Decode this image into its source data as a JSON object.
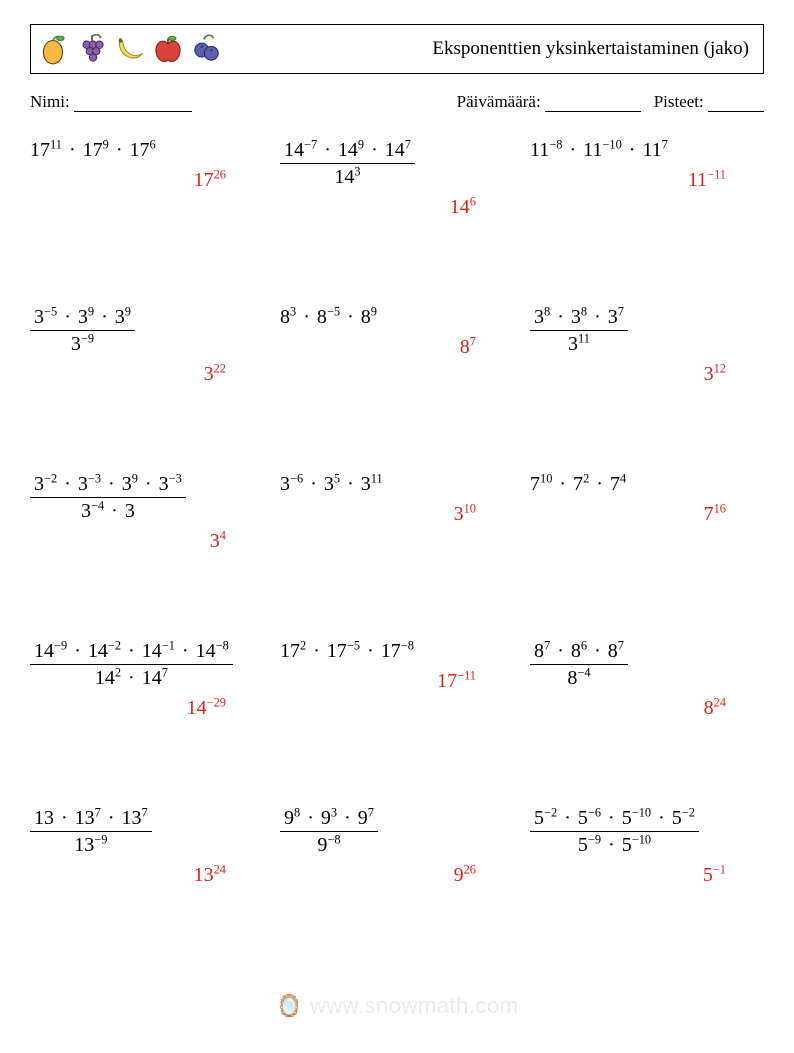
{
  "header": {
    "title": "Eksponenttien yksinkertaistaminen (jako)",
    "title_fontsize": 19
  },
  "meta": {
    "name_label": "Nimi:",
    "date_label": "Päivämäärä:",
    "score_label": "Pisteet:",
    "fontsize": 17,
    "blank_widths": {
      "name": 118,
      "date": 96,
      "score": 56
    }
  },
  "icons": [
    "mango-icon",
    "grapes-icon",
    "banana-icon",
    "apple-icon",
    "blueberries-icon"
  ],
  "style": {
    "answer_color": "#d8231b",
    "text_color": "#000000",
    "background_color": "#ffffff",
    "expr_fontsize": 20,
    "columns": 3,
    "row_gap": 90
  },
  "watermark": "🪞 www.snowmath.com",
  "problems": [
    {
      "type": "product",
      "terms": [
        {
          "b": "17",
          "e": "11"
        },
        {
          "b": "17",
          "e": "9"
        },
        {
          "b": "17",
          "e": "6"
        }
      ],
      "answer": {
        "b": "17",
        "e": "26"
      }
    },
    {
      "type": "fraction",
      "num": [
        {
          "b": "14",
          "e": "−7"
        },
        {
          "b": "14",
          "e": "9"
        },
        {
          "b": "14",
          "e": "7"
        }
      ],
      "den": [
        {
          "b": "14",
          "e": "3"
        }
      ],
      "answer": {
        "b": "14",
        "e": "6"
      }
    },
    {
      "type": "product",
      "terms": [
        {
          "b": "11",
          "e": "−8"
        },
        {
          "b": "11",
          "e": "−10"
        },
        {
          "b": "11",
          "e": "7"
        }
      ],
      "answer": {
        "b": "11",
        "e": "−11"
      }
    },
    {
      "type": "fraction",
      "num": [
        {
          "b": "3",
          "e": "−5"
        },
        {
          "b": "3",
          "e": "9"
        },
        {
          "b": "3",
          "e": "9"
        }
      ],
      "den": [
        {
          "b": "3",
          "e": "−9"
        }
      ],
      "answer": {
        "b": "3",
        "e": "22"
      }
    },
    {
      "type": "product",
      "terms": [
        {
          "b": "8",
          "e": "3"
        },
        {
          "b": "8",
          "e": "−5"
        },
        {
          "b": "8",
          "e": "9"
        }
      ],
      "answer": {
        "b": "8",
        "e": "7"
      }
    },
    {
      "type": "fraction",
      "num": [
        {
          "b": "3",
          "e": "8"
        },
        {
          "b": "3",
          "e": "8"
        },
        {
          "b": "3",
          "e": "7"
        }
      ],
      "den": [
        {
          "b": "3",
          "e": "11"
        }
      ],
      "answer": {
        "b": "3",
        "e": "12"
      }
    },
    {
      "type": "fraction",
      "num": [
        {
          "b": "3",
          "e": "−2"
        },
        {
          "b": "3",
          "e": "−3"
        },
        {
          "b": "3",
          "e": "9"
        },
        {
          "b": "3",
          "e": "−3"
        }
      ],
      "den": [
        {
          "b": "3",
          "e": "−4"
        },
        {
          "b": "3",
          "e": ""
        }
      ],
      "answer": {
        "b": "3",
        "e": "4"
      }
    },
    {
      "type": "product",
      "terms": [
        {
          "b": "3",
          "e": "−6"
        },
        {
          "b": "3",
          "e": "5"
        },
        {
          "b": "3",
          "e": "11"
        }
      ],
      "answer": {
        "b": "3",
        "e": "10"
      }
    },
    {
      "type": "product",
      "terms": [
        {
          "b": "7",
          "e": "10"
        },
        {
          "b": "7",
          "e": "2"
        },
        {
          "b": "7",
          "e": "4"
        }
      ],
      "answer": {
        "b": "7",
        "e": "16"
      }
    },
    {
      "type": "fraction",
      "num": [
        {
          "b": "14",
          "e": "−9"
        },
        {
          "b": "14",
          "e": "−2"
        },
        {
          "b": "14",
          "e": "−1"
        },
        {
          "b": "14",
          "e": "−8"
        }
      ],
      "den": [
        {
          "b": "14",
          "e": "2"
        },
        {
          "b": "14",
          "e": "7"
        }
      ],
      "answer": {
        "b": "14",
        "e": "−29"
      }
    },
    {
      "type": "product",
      "terms": [
        {
          "b": "17",
          "e": "2"
        },
        {
          "b": "17",
          "e": "−5"
        },
        {
          "b": "17",
          "e": "−8"
        }
      ],
      "answer": {
        "b": "17",
        "e": "−11"
      }
    },
    {
      "type": "fraction",
      "num": [
        {
          "b": "8",
          "e": "7"
        },
        {
          "b": "8",
          "e": "6"
        },
        {
          "b": "8",
          "e": "7"
        }
      ],
      "den": [
        {
          "b": "8",
          "e": "−4"
        }
      ],
      "answer": {
        "b": "8",
        "e": "24"
      }
    },
    {
      "type": "fraction",
      "num": [
        {
          "b": "13",
          "e": ""
        },
        {
          "b": "13",
          "e": "7"
        },
        {
          "b": "13",
          "e": "7"
        }
      ],
      "den": [
        {
          "b": "13",
          "e": "−9"
        }
      ],
      "answer": {
        "b": "13",
        "e": "24"
      }
    },
    {
      "type": "fraction",
      "num": [
        {
          "b": "9",
          "e": "8"
        },
        {
          "b": "9",
          "e": "3"
        },
        {
          "b": "9",
          "e": "7"
        }
      ],
      "den": [
        {
          "b": "9",
          "e": "−8"
        }
      ],
      "answer": {
        "b": "9",
        "e": "26"
      }
    },
    {
      "type": "fraction",
      "num": [
        {
          "b": "5",
          "e": "−2"
        },
        {
          "b": "5",
          "e": "−6"
        },
        {
          "b": "5",
          "e": "−10"
        },
        {
          "b": "5",
          "e": "−2"
        }
      ],
      "den": [
        {
          "b": "5",
          "e": "−9"
        },
        {
          "b": "5",
          "e": "−10"
        }
      ],
      "answer": {
        "b": "5",
        "e": "−1"
      }
    }
  ]
}
